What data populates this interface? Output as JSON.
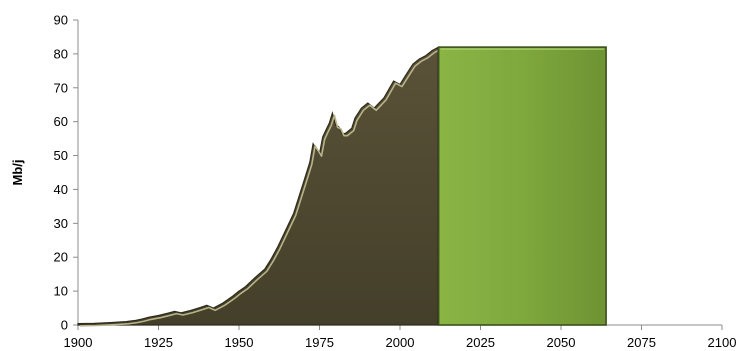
{
  "chart_data": {
    "type": "area",
    "title": "",
    "xlabel": "",
    "ylabel": "Mb/j",
    "xlim": [
      1900,
      2100
    ],
    "ylim": [
      0,
      90
    ],
    "x_ticks": [
      1900,
      1925,
      1950,
      1975,
      2000,
      2025,
      2050,
      2075,
      2100
    ],
    "y_ticks": [
      0,
      10,
      20,
      30,
      40,
      50,
      60,
      70,
      80,
      90
    ],
    "grid": false,
    "legend": "none",
    "series": [
      {
        "kind": "area",
        "color": "#4a4530",
        "highlight": "#b8b48a",
        "x": [
          1900,
          1905,
          1910,
          1915,
          1918,
          1920,
          1922,
          1925,
          1928,
          1930,
          1932,
          1935,
          1938,
          1940,
          1942,
          1945,
          1948,
          1950,
          1952,
          1955,
          1958,
          1960,
          1962,
          1965,
          1967,
          1970,
          1972,
          1973,
          1974,
          1975,
          1976,
          1977,
          1978,
          1979,
          1980,
          1981,
          1982,
          1983,
          1985,
          1986,
          1988,
          1990,
          1992,
          1995,
          1998,
          2000,
          2002,
          2004,
          2006,
          2008,
          2010,
          2012
        ],
        "y": [
          0.4,
          0.5,
          0.7,
          1.0,
          1.4,
          1.8,
          2.3,
          2.8,
          3.5,
          4.0,
          3.6,
          4.3,
          5.2,
          5.8,
          5.0,
          6.5,
          8.5,
          10.0,
          11.3,
          14.0,
          16.5,
          19.5,
          23.0,
          29.0,
          33.0,
          42.0,
          48.0,
          53.5,
          52.0,
          50.5,
          55.5,
          57.5,
          59.5,
          62.5,
          59.0,
          58.5,
          56.5,
          56.5,
          58.0,
          61.0,
          64.0,
          65.5,
          64.0,
          67.0,
          72.0,
          71.0,
          74.0,
          77.0,
          78.5,
          79.5,
          81.0,
          82.0
        ]
      },
      {
        "kind": "block",
        "color": "#7aa03b",
        "x": [
          2012,
          2064
        ],
        "y": [
          82,
          82
        ]
      }
    ]
  }
}
